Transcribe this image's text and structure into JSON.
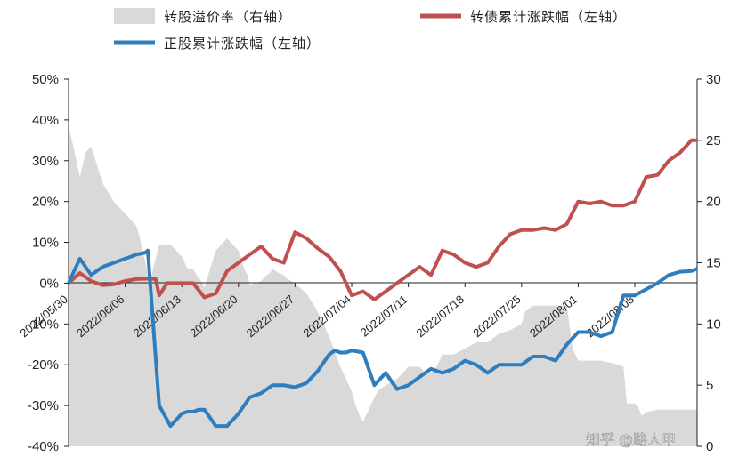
{
  "chart_data": {
    "type": "line",
    "legend": {
      "items": [
        {
          "key": "premium",
          "label": "转股溢价率（右轴）",
          "color": "#d9d9d9",
          "kind": "area"
        },
        {
          "key": "cb",
          "label": "转债累计涨跌幅（左轴）",
          "color": "#c0504d",
          "kind": "line"
        },
        {
          "key": "stock",
          "label": "正股累计涨跌幅（左轴）",
          "color": "#2e7ebf",
          "kind": "line"
        }
      ]
    },
    "left_axis": {
      "ylim": [
        -40,
        50
      ],
      "ticks": [
        "50%",
        "40%",
        "30%",
        "20%",
        "10%",
        "0%",
        "-10%",
        "-20%",
        "-30%",
        "-40%"
      ]
    },
    "right_axis": {
      "ylim": [
        0,
        30
      ],
      "ticks": [
        "30",
        "25",
        "20",
        "15",
        "10",
        "5",
        "0"
      ]
    },
    "x_ticks": [
      "2022/05/30",
      "2022/06/06",
      "2022/06/13",
      "2022/06/20",
      "2022/06/27",
      "2022/07/04",
      "2022/07/11",
      "2022/07/18",
      "2022/07/25",
      "2022/08/01",
      "2022/08/08"
    ],
    "series": [
      {
        "name": "转股溢价率（右轴）",
        "axis": "right",
        "x": [
          0,
          0.3,
          1,
          1.5,
          2,
          3,
          4,
          4.5,
          5,
          6,
          6.3,
          6.8,
          7,
          7.2,
          8,
          9,
          10,
          10.5,
          11,
          11.3,
          11.7,
          12,
          13,
          14,
          15,
          15.2,
          15.5,
          15.8,
          16,
          17,
          17.5,
          17.8,
          18,
          18.5,
          19,
          19.3,
          19.7,
          20,
          21,
          22,
          23,
          24,
          25,
          25.3,
          25.7,
          26,
          27,
          27.3,
          27.7,
          28,
          29,
          30,
          31,
          31.5,
          32,
          32.5,
          33,
          34,
          35,
          36,
          36.3,
          36.6,
          37,
          38,
          39,
          40,
          40.3,
          40.6,
          41,
          42,
          43,
          44,
          44.5,
          45,
          45.3,
          45.6,
          46,
          47,
          48,
          49,
          49.3,
          49.6,
          50,
          50.3,
          50.6,
          51,
          52,
          53,
          54,
          55,
          55.5
        ],
        "values": [
          26,
          25,
          22,
          24,
          24.5,
          21.5,
          20,
          19.5,
          19,
          18,
          17,
          15,
          14,
          13.5,
          16.5,
          16.5,
          15.5,
          14.5,
          14.5,
          14,
          13.5,
          13,
          16,
          17,
          16,
          15.5,
          14.5,
          14,
          13.2,
          13.5,
          14,
          14.2,
          14.5,
          14.2,
          14,
          13.7,
          13.5,
          13.3,
          12.5,
          11,
          9,
          6.5,
          4.5,
          3.5,
          2.5,
          2,
          4,
          4.5,
          4.8,
          5,
          5.5,
          6.5,
          6.5,
          6,
          6,
          6.5,
          7.5,
          7.5,
          8,
          8.5,
          8.5,
          8.5,
          8.5,
          9.2,
          9.5,
          10,
          11,
          11.2,
          11.5,
          11.5,
          11.5,
          11.5,
          8,
          7,
          7,
          7,
          7,
          7,
          6.8,
          6.5,
          3.5,
          3.5,
          3.5,
          3.2,
          2.5,
          2.8,
          3,
          3,
          3,
          3,
          3
        ]
      },
      {
        "name": "转债累计涨跌幅（左轴）",
        "axis": "left",
        "x": [
          0,
          1,
          2,
          3,
          4,
          5,
          6,
          7,
          7.7,
          8,
          8.7,
          9,
          10,
          11,
          12,
          13,
          14,
          15,
          16,
          17,
          18,
          19,
          20,
          21,
          22,
          23,
          24,
          25,
          26,
          27,
          28,
          29,
          30,
          31,
          32,
          33,
          34,
          35,
          36,
          37,
          38,
          39,
          40,
          41,
          42,
          43,
          44,
          45,
          46,
          47,
          48,
          49,
          50,
          51,
          52,
          53,
          54,
          55,
          55.5
        ],
        "values": [
          0,
          2.5,
          0.5,
          -0.5,
          -0.3,
          0.5,
          1,
          1.1,
          1,
          -3,
          0,
          0,
          0,
          0,
          -3.5,
          -2.5,
          3,
          5,
          7,
          9,
          6,
          5,
          12.5,
          11,
          8.5,
          6.5,
          3,
          -3,
          -2,
          -4,
          -2,
          0,
          2,
          4,
          2,
          8,
          7,
          5,
          4,
          5,
          9,
          12,
          13,
          13,
          13.5,
          13,
          14.5,
          20,
          19.5,
          20,
          19,
          19,
          20,
          26,
          26.5,
          30,
          32,
          35,
          35
        ]
      },
      {
        "name": "正股累计涨跌幅（左轴）",
        "axis": "left",
        "x": [
          0,
          1,
          2,
          3,
          4,
          5,
          5.5,
          6,
          6.8,
          7,
          8,
          9,
          10,
          10.5,
          11,
          11.5,
          12,
          13,
          14,
          15,
          16,
          17,
          18,
          19,
          20,
          21,
          22,
          23,
          23.5,
          24,
          24.5,
          25,
          26,
          27,
          28,
          29,
          30,
          31,
          32,
          33,
          34,
          35,
          36,
          37,
          38,
          38.5,
          39,
          40,
          41,
          42,
          43,
          44,
          45,
          46,
          47,
          48,
          49,
          50,
          51,
          52,
          53,
          54,
          55,
          55.5
        ],
        "values": [
          0,
          6,
          2,
          4,
          5,
          6,
          6.5,
          7,
          7.5,
          8,
          -30,
          -35,
          -32,
          -31.5,
          -31.5,
          -31,
          -31,
          -35,
          -35,
          -32,
          -28,
          -27,
          -25,
          -25,
          -25.5,
          -24.5,
          -21.5,
          -17.5,
          -16.5,
          -17,
          -17,
          -16.5,
          -17,
          -25,
          -22,
          -26,
          -25,
          -23,
          -21,
          -22,
          -21,
          -19,
          -20,
          -22,
          -20,
          -20,
          -20,
          -20,
          -18,
          -18,
          -19,
          -15,
          -12,
          -12,
          -13,
          -12,
          -3,
          -3,
          -1.5,
          0,
          2,
          2.8,
          3,
          3.5
        ]
      }
    ]
  },
  "watermark": "知乎 @路人甲"
}
